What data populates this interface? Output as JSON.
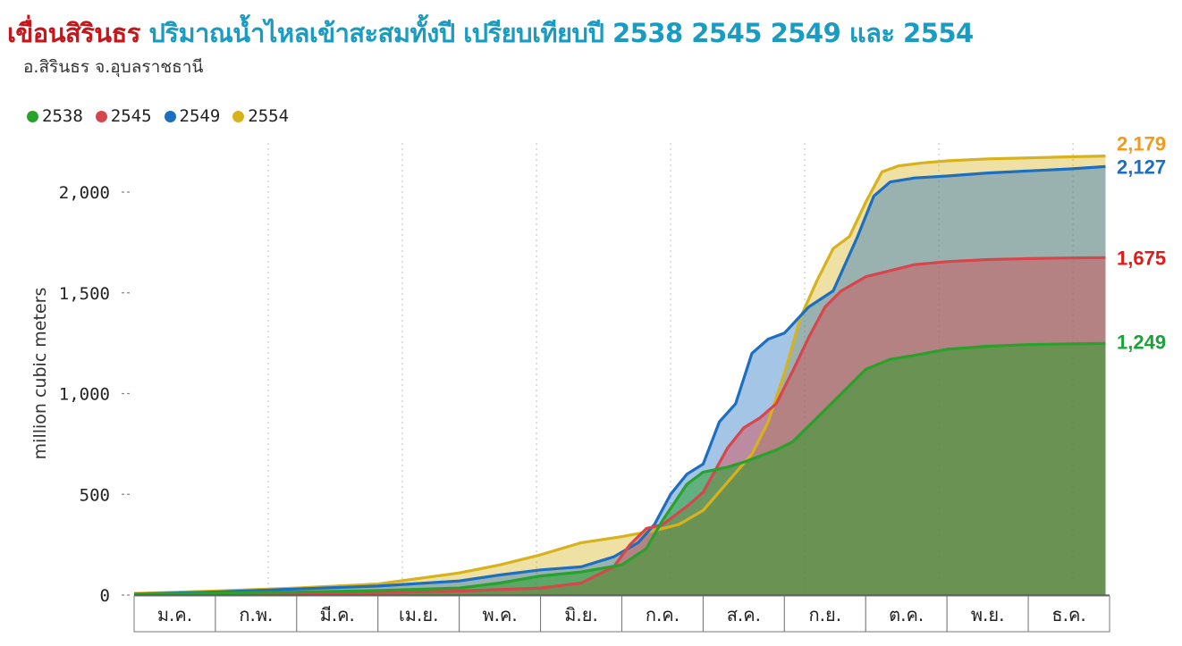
{
  "header": {
    "title_main": "เขื่อนสิรินธร",
    "title_rest": "ปริมาณน้ำไหลเข้าสะสมทั้งปี เปรียบเทียบปี 2538 2545 2549 และ 2554",
    "subtitle": "อ.สิรินธร จ.อุบลราชธานี"
  },
  "colors": {
    "2538": "#2aa12c",
    "2545": "#d7464d",
    "2549": "#1c6fc0",
    "2554": "#d7b21c",
    "label_2554": "#f29a1a",
    "label_2549": "#1c6fc0",
    "label_2545": "#e01a1a",
    "label_2538": "#1aa23a"
  },
  "chart_data": {
    "type": "area",
    "title": "ปริมาณน้ำไหลเข้าสะสมทั้งปี เปรียบเทียบปี 2538 2545 2549 และ 2554",
    "ylabel": "million cubic meters",
    "xlabel": "",
    "ylim": [
      0,
      2250
    ],
    "yticks": [
      0,
      500,
      1000,
      1500,
      2000
    ],
    "ytick_labels": [
      "0",
      "500",
      "1,000",
      "1,500",
      "2,000"
    ],
    "months": [
      "ม.ค.",
      "ก.พ.",
      "มี.ค.",
      "เม.ย.",
      "พ.ค.",
      "มิ.ย.",
      "ก.ค.",
      "ส.ค.",
      "ก.ย.",
      "ต.ค.",
      "พ.ย.",
      "ธ.ค."
    ],
    "x_unit": "month (0 = Jan 1, 12 = Dec 31)",
    "grid": "vertical dotted",
    "legend_position": "top-left",
    "series": [
      {
        "name": "2538",
        "end_label": "1,249",
        "x": [
          0,
          1,
          2,
          3,
          4,
          4.5,
          5,
          5.5,
          6,
          6.3,
          6.5,
          6.8,
          7,
          7.3,
          7.5,
          7.7,
          7.9,
          8.1,
          8.4,
          8.7,
          9,
          9.3,
          9.6,
          10,
          10.5,
          11,
          11.5,
          11.95
        ],
        "values": [
          5,
          10,
          15,
          22,
          35,
          60,
          95,
          115,
          150,
          230,
          370,
          550,
          610,
          635,
          660,
          690,
          720,
          760,
          880,
          1000,
          1120,
          1170,
          1190,
          1220,
          1235,
          1243,
          1247,
          1249
        ]
      },
      {
        "name": "2545",
        "end_label": "1,675",
        "x": [
          0,
          1,
          2,
          3,
          4,
          5,
          5.5,
          5.9,
          6.1,
          6.3,
          6.5,
          6.8,
          7,
          7.3,
          7.5,
          7.7,
          7.9,
          8.1,
          8.3,
          8.5,
          8.7,
          9,
          9.3,
          9.6,
          10,
          10.5,
          11,
          11.5,
          11.95
        ],
        "values": [
          3,
          5,
          8,
          12,
          20,
          35,
          60,
          140,
          250,
          330,
          350,
          440,
          510,
          730,
          830,
          880,
          950,
          1110,
          1280,
          1430,
          1510,
          1580,
          1610,
          1640,
          1655,
          1665,
          1670,
          1673,
          1675
        ]
      },
      {
        "name": "2549",
        "end_label": "2,127",
        "x": [
          0,
          1,
          2,
          3,
          4,
          4.5,
          5,
          5.5,
          5.9,
          6.2,
          6.4,
          6.6,
          6.8,
          7,
          7.2,
          7.4,
          7.6,
          7.8,
          8,
          8.3,
          8.6,
          8.9,
          9.1,
          9.3,
          9.6,
          10,
          10.5,
          11,
          11.5,
          11.95
        ],
        "values": [
          5,
          15,
          30,
          45,
          70,
          100,
          125,
          140,
          190,
          260,
          350,
          500,
          600,
          650,
          860,
          950,
          1200,
          1270,
          1300,
          1430,
          1510,
          1780,
          1980,
          2050,
          2070,
          2080,
          2095,
          2105,
          2115,
          2127
        ]
      },
      {
        "name": "2554",
        "end_label": "2,179",
        "x": [
          0,
          1,
          2,
          3,
          4,
          4.5,
          5,
          5.5,
          6,
          6.4,
          6.7,
          7,
          7.3,
          7.6,
          7.8,
          8,
          8.2,
          8.4,
          8.6,
          8.8,
          9,
          9.2,
          9.4,
          9.7,
          10,
          10.5,
          11,
          11.5,
          11.95
        ],
        "values": [
          8,
          20,
          35,
          55,
          110,
          150,
          200,
          260,
          290,
          320,
          350,
          420,
          560,
          700,
          860,
          1100,
          1380,
          1560,
          1720,
          1780,
          1950,
          2100,
          2130,
          2145,
          2155,
          2165,
          2170,
          2175,
          2179
        ]
      }
    ]
  }
}
